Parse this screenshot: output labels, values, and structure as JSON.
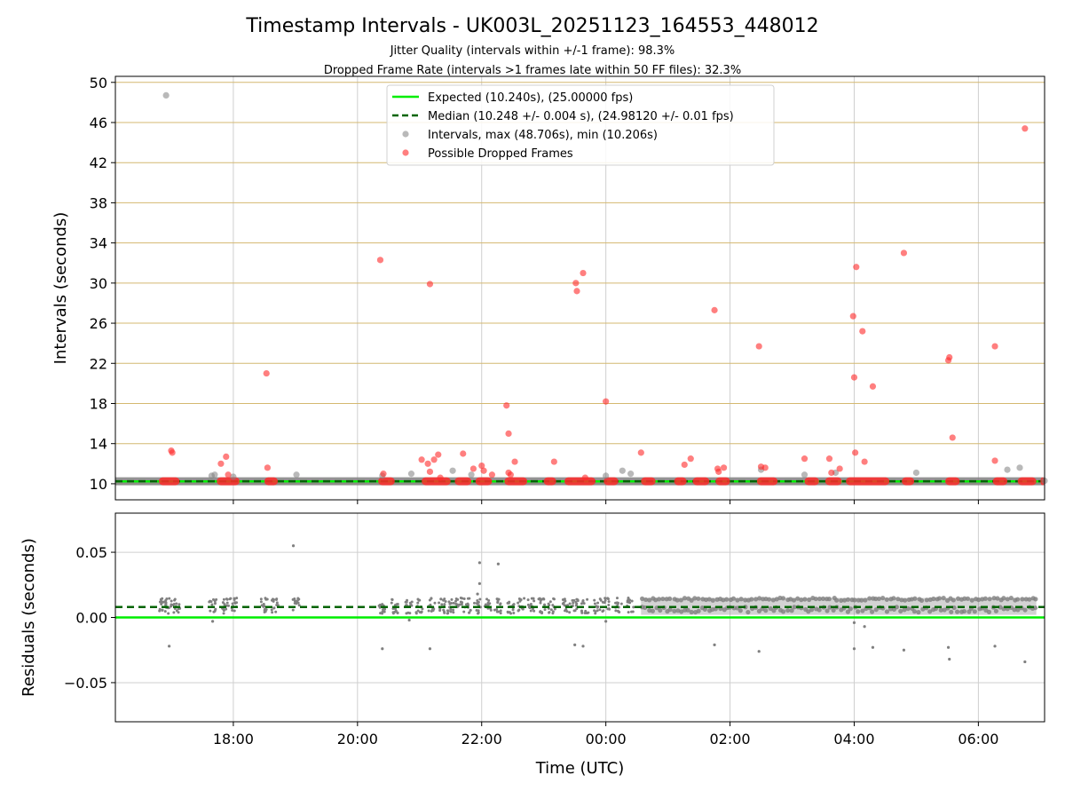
{
  "figure": {
    "title": "Timestamp Intervals - UK003L_20251123_164553_448012",
    "subtitle_line1": "Jitter Quality (intervals within +/-1 frame): 98.3%",
    "subtitle_line2": "Dropped Frame Rate (intervals >1 frames late within 50 FF files): 32.3%"
  },
  "colors": {
    "expected": "#00ee00",
    "median": "#006400",
    "intervals_gray": "#808080",
    "dropped_red": "#ff2a2a",
    "hgrid_gold": "#d4b870",
    "grid_gray": "#cfcfcf"
  },
  "chart_data": [
    {
      "type": "scatter",
      "panel": "top",
      "ylabel": "Intervals (seconds)",
      "xlabel": "",
      "ylim": [
        8.4,
        50.6
      ],
      "yticks": [
        "10",
        "14",
        "18",
        "22",
        "26",
        "30",
        "34",
        "38",
        "42",
        "46",
        "50"
      ],
      "xlim": [
        "16:06",
        "07:04"
      ],
      "xticks": [
        "18:00",
        "20:00",
        "22:00",
        "00:00",
        "02:00",
        "04:00",
        "06:00"
      ],
      "grid": "on",
      "legend_position": "top-center",
      "legend": [
        "Expected (10.240s), (25.00000 fps)",
        "Median (10.248 +/- 0.004 s), (24.98120 +/- 0.01 fps)",
        "Intervals, max (48.706s), min (10.206s)",
        "Possible Dropped Frames"
      ],
      "expected_interval": 10.24,
      "median_interval": 10.248,
      "baseline_band_segments": [
        [
          "16:48",
          "17:08"
        ],
        [
          "17:44",
          "18:06"
        ],
        [
          "18:30",
          "18:43"
        ],
        [
          "20:20",
          "20:36"
        ],
        [
          "21:02",
          "21:30"
        ],
        [
          "21:34",
          "21:50"
        ],
        [
          "21:54",
          "22:10"
        ],
        [
          "22:22",
          "22:44"
        ],
        [
          "23:00",
          "23:12"
        ],
        [
          "23:20",
          "23:50"
        ],
        [
          "23:58",
          "00:12"
        ],
        [
          "00:34",
          "00:48"
        ],
        [
          "01:06",
          "01:18"
        ],
        [
          "01:24",
          "01:40"
        ],
        [
          "01:46",
          "02:00"
        ],
        [
          "02:26",
          "02:46"
        ],
        [
          "03:12",
          "03:26"
        ],
        [
          "03:32",
          "03:48"
        ],
        [
          "03:52",
          "04:34"
        ],
        [
          "04:46",
          "04:58"
        ],
        [
          "05:28",
          "05:42"
        ],
        [
          "06:14",
          "06:28"
        ],
        [
          "06:38",
          "06:56"
        ],
        [
          "07:00",
          "07:04"
        ]
      ],
      "series": [
        {
          "name": "Intervals, max (48.706s), min (10.206s)",
          "points": [
            [
              "16:55",
              48.706
            ],
            [
              "17:39",
              10.8
            ],
            [
              "17:42",
              10.9
            ],
            [
              "18:00",
              10.7
            ],
            [
              "19:01",
              10.9
            ],
            [
              "20:24",
              10.8
            ],
            [
              "20:52",
              11.0
            ],
            [
              "21:32",
              11.3
            ],
            [
              "21:50",
              10.9
            ],
            [
              "00:00",
              10.8
            ],
            [
              "00:16",
              11.3
            ],
            [
              "00:24",
              11.0
            ],
            [
              "02:30",
              11.4
            ],
            [
              "03:12",
              10.9
            ],
            [
              "03:42",
              11.1
            ],
            [
              "05:00",
              11.1
            ],
            [
              "06:28",
              11.4
            ],
            [
              "06:40",
              11.6
            ],
            [
              "07:04",
              10.3
            ]
          ]
        },
        {
          "name": "Possible Dropped Frames",
          "points": [
            [
              "17:00",
              13.3
            ],
            [
              "17:01",
              13.1
            ],
            [
              "17:48",
              12.0
            ],
            [
              "17:53",
              12.7
            ],
            [
              "17:55",
              10.9
            ],
            [
              "18:32",
              21.0
            ],
            [
              "18:33",
              11.6
            ],
            [
              "20:22",
              32.3
            ],
            [
              "20:25",
              11.0
            ],
            [
              "21:02",
              12.4
            ],
            [
              "21:08",
              12.0
            ],
            [
              "21:10",
              11.2
            ],
            [
              "21:10",
              29.9
            ],
            [
              "21:14",
              12.4
            ],
            [
              "21:18",
              12.9
            ],
            [
              "21:20",
              10.6
            ],
            [
              "21:42",
              13.0
            ],
            [
              "21:52",
              11.5
            ],
            [
              "22:00",
              11.8
            ],
            [
              "22:02",
              11.3
            ],
            [
              "22:10",
              10.9
            ],
            [
              "22:24",
              17.8
            ],
            [
              "22:26",
              15.0
            ],
            [
              "22:26",
              11.1
            ],
            [
              "22:28",
              10.9
            ],
            [
              "22:32",
              12.2
            ],
            [
              "23:10",
              12.2
            ],
            [
              "23:31",
              30.0
            ],
            [
              "23:32",
              29.2
            ],
            [
              "23:38",
              31.0
            ],
            [
              "23:40",
              10.6
            ],
            [
              "00:00",
              18.2
            ],
            [
              "00:34",
              13.1
            ],
            [
              "01:16",
              11.9
            ],
            [
              "01:22",
              12.5
            ],
            [
              "01:45",
              27.3
            ],
            [
              "01:48",
              11.5
            ],
            [
              "01:49",
              11.2
            ],
            [
              "01:54",
              11.6
            ],
            [
              "02:28",
              23.7
            ],
            [
              "02:30",
              11.7
            ],
            [
              "02:34",
              11.6
            ],
            [
              "03:12",
              12.5
            ],
            [
              "03:36",
              12.5
            ],
            [
              "03:38",
              11.1
            ],
            [
              "03:46",
              11.5
            ],
            [
              "03:59",
              26.7
            ],
            [
              "04:00",
              20.6
            ],
            [
              "04:01",
              13.1
            ],
            [
              "04:02",
              31.6
            ],
            [
              "04:08",
              25.2
            ],
            [
              "04:10",
              12.2
            ],
            [
              "04:18",
              19.7
            ],
            [
              "04:48",
              33.0
            ],
            [
              "05:31",
              22.3
            ],
            [
              "05:32",
              22.6
            ],
            [
              "05:35",
              14.6
            ],
            [
              "06:16",
              23.7
            ],
            [
              "06:16",
              12.3
            ],
            [
              "06:45",
              45.4
            ]
          ]
        }
      ]
    },
    {
      "type": "scatter",
      "panel": "bottom",
      "ylabel": "Residuals (seconds)",
      "xlabel": "Time (UTC)",
      "ylim": [
        -0.08,
        0.08
      ],
      "yticks": [
        "−0.05",
        "0.00",
        "0.05"
      ],
      "xlim": [
        "16:06",
        "07:04"
      ],
      "xticks": [
        "18:00",
        "20:00",
        "22:00",
        "00:00",
        "02:00",
        "04:00",
        "06:00"
      ],
      "grid": "on",
      "expected_residual": 0.0,
      "median_residual": 0.008,
      "dense_band": {
        "from": "00:34",
        "to": "06:56",
        "y_min": 0.002,
        "y_max": 0.015
      },
      "clusters": [
        "16:52",
        "16:58",
        "17:05",
        "17:40",
        "17:52",
        "18:00",
        "18:30",
        "18:40",
        "19:01",
        "20:24",
        "20:36",
        "20:50",
        "21:00",
        "21:12",
        "21:22",
        "21:30",
        "21:38",
        "21:46",
        "21:56",
        "22:06",
        "22:16",
        "22:28",
        "22:38",
        "22:48",
        "22:58",
        "23:08",
        "23:22",
        "23:30",
        "23:40",
        "23:52",
        "00:00",
        "00:12",
        "00:24"
      ],
      "series": [
        {
          "name": "Residuals",
          "points": [
            [
              "18:58",
              0.055
            ],
            [
              "21:58",
              0.042
            ],
            [
              "22:16",
              0.041
            ],
            [
              "21:58",
              0.026
            ],
            [
              "21:56",
              0.018
            ],
            [
              "16:58",
              -0.022
            ],
            [
              "20:24",
              -0.024
            ],
            [
              "21:10",
              -0.024
            ],
            [
              "23:30",
              -0.021
            ],
            [
              "23:38",
              -0.022
            ],
            [
              "01:45",
              -0.021
            ],
            [
              "02:28",
              -0.026
            ],
            [
              "04:00",
              -0.024
            ],
            [
              "04:18",
              -0.023
            ],
            [
              "04:48",
              -0.025
            ],
            [
              "05:31",
              -0.023
            ],
            [
              "05:32",
              -0.032
            ],
            [
              "06:16",
              -0.022
            ],
            [
              "06:45",
              -0.034
            ],
            [
              "04:00",
              -0.004
            ],
            [
              "04:10",
              -0.007
            ],
            [
              "17:40",
              -0.003
            ],
            [
              "20:50",
              -0.002
            ],
            [
              "00:00",
              -0.003
            ]
          ]
        }
      ]
    }
  ]
}
